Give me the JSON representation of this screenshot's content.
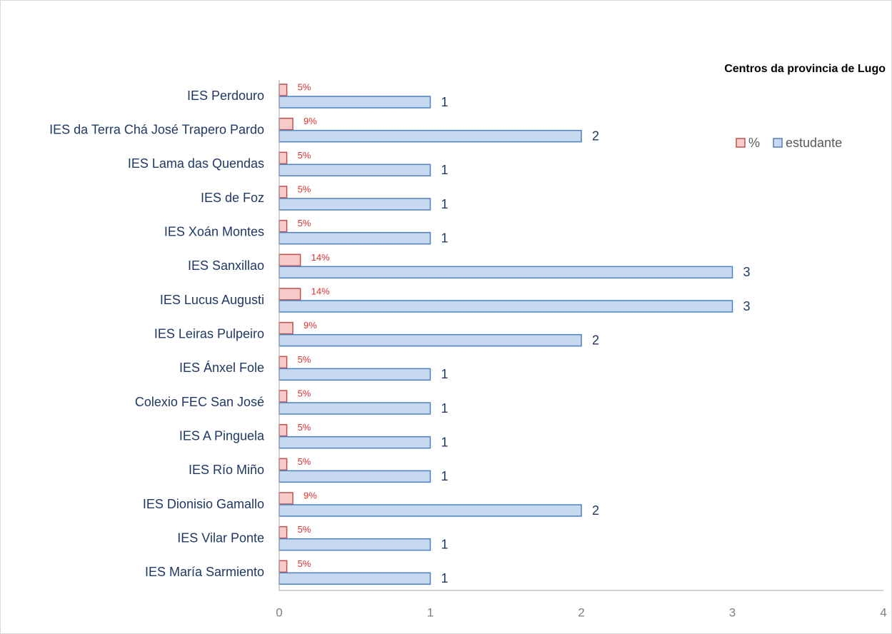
{
  "chart_data": {
    "type": "bar",
    "orientation": "horizontal",
    "subtitle": "Centros da provincia de Lugo",
    "categories": [
      "IES Perdouro",
      "IES da Terra Chá José Trapero Pardo",
      "IES Lama das Quendas",
      "IES de Foz",
      "IES Xoán Montes",
      "IES Sanxillao",
      "IES Lucus Augusti",
      "IES Leiras Pulpeiro",
      "IES Ánxel Fole",
      "Colexio FEC San José",
      "IES A Pinguela",
      "IES Río Miño",
      "IES Dionisio Gamallo",
      "IES Vilar Ponte",
      "IES María Sarmiento"
    ],
    "series": [
      {
        "name": "%",
        "color": "#c0504d",
        "fill": "#f9caca",
        "values": [
          0.05,
          0.09,
          0.05,
          0.05,
          0.05,
          0.14,
          0.14,
          0.09,
          0.05,
          0.05,
          0.05,
          0.05,
          0.09,
          0.05,
          0.05
        ],
        "value_labels": [
          "5%",
          "9%",
          "5%",
          "5%",
          "5%",
          "14%",
          "14%",
          "9%",
          "5%",
          "5%",
          "5%",
          "5%",
          "9%",
          "5%",
          "5%"
        ]
      },
      {
        "name": "estudante",
        "color": "#4f81bd",
        "fill": "#c6d9f1",
        "values": [
          1,
          2,
          1,
          1,
          1,
          3,
          3,
          2,
          1,
          1,
          1,
          1,
          2,
          1,
          1
        ]
      }
    ],
    "xlim": [
      0,
      4
    ],
    "xticks": [
      0,
      1,
      2,
      3,
      4
    ],
    "grid": false,
    "legend": "top-right"
  }
}
